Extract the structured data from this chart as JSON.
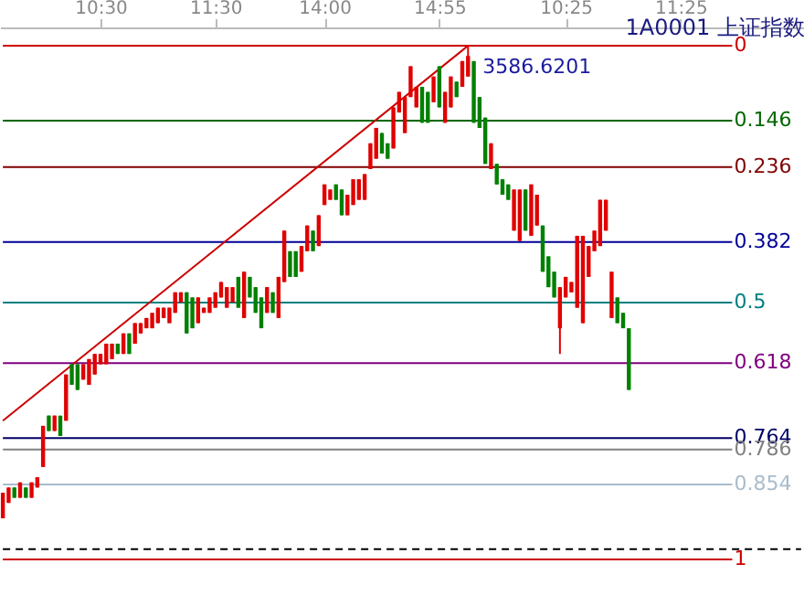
{
  "chart_data": {
    "type": "candlestick",
    "categories": [
      null,
      null,
      null,
      null,
      null,
      null,
      null,
      null,
      null,
      null,
      null,
      null,
      null,
      null,
      null,
      null,
      null,
      "10:30",
      null,
      null,
      null,
      null,
      null,
      null,
      null,
      null,
      null,
      null,
      null,
      null,
      null,
      null,
      null,
      null,
      null,
      null,
      null,
      "11:30",
      null,
      null,
      null,
      null,
      null,
      null,
      null,
      null,
      null,
      null,
      null,
      null,
      null,
      null,
      null,
      null,
      null,
      null,
      "14:00",
      null,
      null,
      null,
      null,
      null,
      null,
      null,
      null,
      null,
      null,
      null,
      null,
      null,
      null,
      null,
      null,
      null,
      null,
      null,
      "14:55",
      null,
      null,
      null,
      null,
      null,
      null,
      null,
      null,
      null,
      null,
      null,
      null,
      null,
      null,
      null,
      null,
      null,
      null,
      null,
      null,
      null,
      "10:25",
      null,
      null,
      null,
      null,
      null,
      null,
      null,
      null,
      null,
      null,
      null,
      null,
      null,
      null,
      null,
      null,
      null,
      null,
      null,
      "11:25",
      null,
      null,
      null,
      null,
      null,
      null,
      null,
      null,
      null,
      null,
      null,
      null,
      null,
      null,
      null,
      null,
      null,
      null,
      null,
      null,
      null
    ],
    "ohlc": [
      [
        0.92,
        0.92,
        0.87,
        0.87
      ],
      [
        0.89,
        0.89,
        0.86,
        0.86
      ],
      [
        0.86,
        0.88,
        0.86,
        0.88
      ],
      [
        0.88,
        0.88,
        0.85,
        0.85
      ],
      [
        0.86,
        0.88,
        0.86,
        0.88
      ],
      [
        0.88,
        0.88,
        0.85,
        0.85
      ],
      [
        0.86,
        0.86,
        0.84,
        0.84
      ],
      [
        0.82,
        0.82,
        0.74,
        0.74
      ],
      [
        0.72,
        0.75,
        0.72,
        0.75
      ],
      [
        0.75,
        0.75,
        0.72,
        0.72
      ],
      [
        0.72,
        0.76,
        0.72,
        0.76
      ],
      [
        0.73,
        0.73,
        0.64,
        0.64
      ],
      [
        0.62,
        0.66,
        0.62,
        0.66
      ],
      [
        0.62,
        0.67,
        0.62,
        0.67
      ],
      [
        0.65,
        0.65,
        0.62,
        0.62
      ],
      [
        0.66,
        0.66,
        0.61,
        0.61
      ],
      [
        0.64,
        0.64,
        0.6,
        0.6
      ],
      [
        0.62,
        0.62,
        0.6,
        0.6
      ],
      [
        0.62,
        0.62,
        0.58,
        0.58
      ],
      [
        0.61,
        0.61,
        0.58,
        0.58
      ],
      [
        0.58,
        0.6,
        0.58,
        0.6
      ],
      [
        0.6,
        0.6,
        0.56,
        0.56
      ],
      [
        0.56,
        0.6,
        0.56,
        0.6
      ],
      [
        0.58,
        0.58,
        0.54,
        0.54
      ],
      [
        0.56,
        0.56,
        0.54,
        0.54
      ],
      [
        0.55,
        0.55,
        0.53,
        0.53
      ],
      [
        0.55,
        0.55,
        0.52,
        0.52
      ],
      [
        0.54,
        0.54,
        0.51,
        0.51
      ],
      [
        0.53,
        0.53,
        0.51,
        0.51
      ],
      [
        0.54,
        0.54,
        0.51,
        0.51
      ],
      [
        0.52,
        0.52,
        0.48,
        0.48
      ],
      [
        0.5,
        0.5,
        0.48,
        0.48
      ],
      [
        0.48,
        0.56,
        0.48,
        0.56
      ],
      [
        0.49,
        0.55,
        0.49,
        0.55
      ],
      [
        0.54,
        0.54,
        0.49,
        0.49
      ],
      [
        0.52,
        0.52,
        0.51,
        0.51
      ],
      [
        0.52,
        0.52,
        0.49,
        0.49
      ],
      [
        0.51,
        0.51,
        0.48,
        0.48
      ],
      [
        0.49,
        0.49,
        0.46,
        0.46
      ],
      [
        0.51,
        0.51,
        0.47,
        0.47
      ],
      [
        0.5,
        0.5,
        0.47,
        0.47
      ],
      [
        0.45,
        0.51,
        0.45,
        0.51
      ],
      [
        0.53,
        0.53,
        0.44,
        0.44
      ],
      [
        0.45,
        0.49,
        0.45,
        0.49
      ],
      [
        0.47,
        0.52,
        0.47,
        0.52
      ],
      [
        0.49,
        0.55,
        0.49,
        0.55
      ],
      [
        0.52,
        0.52,
        0.47,
        0.47
      ],
      [
        0.48,
        0.52,
        0.48,
        0.52
      ],
      [
        0.53,
        0.53,
        0.45,
        0.45
      ],
      [
        0.46,
        0.46,
        0.36,
        0.36
      ],
      [
        0.4,
        0.45,
        0.4,
        0.45
      ],
      [
        0.4,
        0.45,
        0.4,
        0.45
      ],
      [
        0.44,
        0.44,
        0.39,
        0.39
      ],
      [
        0.4,
        0.4,
        0.35,
        0.35
      ],
      [
        0.36,
        0.4,
        0.36,
        0.4
      ],
      [
        0.39,
        0.39,
        0.33,
        0.33
      ],
      [
        0.31,
        0.31,
        0.27,
        0.27
      ],
      [
        0.3,
        0.3,
        0.28,
        0.28
      ],
      [
        0.27,
        0.3,
        0.27,
        0.3
      ],
      [
        0.28,
        0.33,
        0.28,
        0.33
      ],
      [
        0.33,
        0.33,
        0.29,
        0.29
      ],
      [
        0.31,
        0.31,
        0.26,
        0.26
      ],
      [
        0.3,
        0.3,
        0.26,
        0.26
      ],
      [
        0.3,
        0.3,
        0.25,
        0.25
      ],
      [
        0.24,
        0.24,
        0.19,
        0.19
      ],
      [
        0.22,
        0.22,
        0.16,
        0.16
      ],
      [
        0.17,
        0.21,
        0.17,
        0.21
      ],
      [
        0.19,
        0.22,
        0.19,
        0.22
      ],
      [
        0.2,
        0.2,
        0.12,
        0.12
      ],
      [
        0.13,
        0.13,
        0.09,
        0.09
      ],
      [
        0.17,
        0.17,
        0.1,
        0.1
      ],
      [
        0.1,
        0.1,
        0.04,
        0.04
      ],
      [
        0.12,
        0.12,
        0.08,
        0.08
      ],
      [
        0.08,
        0.15,
        0.08,
        0.15
      ],
      [
        0.09,
        0.15,
        0.09,
        0.15
      ],
      [
        0.11,
        0.11,
        0.06,
        0.06
      ],
      [
        0.04,
        0.12,
        0.04,
        0.12
      ],
      [
        0.15,
        0.15,
        0.09,
        0.09
      ],
      [
        0.12,
        0.12,
        0.06,
        0.06
      ],
      [
        0.07,
        0.1,
        0.07,
        0.1
      ],
      [
        0.08,
        0.08,
        0.03,
        0.03
      ],
      [
        0.06,
        0.06,
        0.0,
        0.02
      ],
      [
        0.03,
        0.15,
        0.03,
        0.15
      ],
      [
        0.1,
        0.16,
        0.1,
        0.16
      ],
      [
        0.14,
        0.23,
        0.14,
        0.23
      ],
      [
        0.24,
        0.24,
        0.19,
        0.19
      ],
      [
        0.23,
        0.27,
        0.23,
        0.27
      ],
      [
        0.26,
        0.29,
        0.26,
        0.29
      ],
      [
        0.27,
        0.3,
        0.27,
        0.3
      ],
      [
        0.36,
        0.36,
        0.28,
        0.28
      ],
      [
        0.38,
        0.38,
        0.28,
        0.28
      ],
      [
        0.28,
        0.36,
        0.28,
        0.36
      ],
      [
        0.37,
        0.37,
        0.27,
        0.27
      ],
      [
        0.35,
        0.35,
        0.29,
        0.29
      ],
      [
        0.35,
        0.44,
        0.35,
        0.44
      ],
      [
        0.41,
        0.47,
        0.41,
        0.47
      ],
      [
        0.44,
        0.49,
        0.44,
        0.49
      ],
      [
        0.55,
        0.6,
        0.47,
        0.47
      ],
      [
        0.49,
        0.49,
        0.45,
        0.45
      ],
      [
        0.48,
        0.48,
        0.46,
        0.46
      ],
      [
        0.51,
        0.51,
        0.37,
        0.37
      ],
      [
        0.54,
        0.54,
        0.37,
        0.37
      ],
      [
        0.45,
        0.45,
        0.39,
        0.39
      ],
      [
        0.4,
        0.4,
        0.36,
        0.36
      ],
      [
        0.39,
        0.39,
        0.3,
        0.3
      ],
      [
        0.36,
        0.36,
        0.3,
        0.3
      ],
      [
        0.53,
        0.53,
        0.44,
        0.44
      ],
      [
        0.49,
        0.54,
        0.49,
        0.54
      ],
      [
        0.52,
        0.55,
        0.52,
        0.55
      ],
      [
        0.55,
        0.67,
        0.55,
        0.67
      ],
      null,
      null,
      null,
      null,
      null,
      null,
      null,
      null,
      null,
      null,
      null,
      null,
      null,
      null,
      null,
      null,
      null,
      null,
      null,
      null,
      null,
      null,
      null,
      null,
      null,
      null,
      null,
      null,
      null,
      null
    ],
    "series": [
      {
        "type": "line",
        "color": "#cc0000",
        "values": [
          0.73,
          null,
          null,
          null,
          null,
          null,
          null,
          null,
          null,
          null,
          null,
          null,
          null,
          null,
          null,
          null,
          null,
          null,
          null,
          null,
          null,
          null,
          null,
          null,
          null,
          null,
          null,
          null,
          null,
          null,
          null,
          null,
          null,
          null,
          null,
          null,
          null,
          null,
          null,
          null,
          null,
          null,
          null,
          null,
          null,
          null,
          null,
          null,
          null,
          null,
          null,
          null,
          null,
          null,
          null,
          null,
          null,
          null,
          null,
          null,
          null,
          null,
          null,
          null,
          null,
          null,
          null,
          null,
          null,
          null,
          null,
          null,
          null,
          null,
          null,
          null,
          null,
          null,
          null,
          null,
          null,
          0.0,
          null,
          null,
          null,
          null,
          null,
          null,
          null,
          null,
          null,
          null,
          null,
          null,
          null,
          null,
          null,
          null,
          null,
          null,
          null,
          null,
          null,
          null,
          null,
          null,
          null,
          null,
          null,
          null,
          null,
          null,
          null,
          null,
          null,
          null,
          null,
          null,
          null,
          null,
          null,
          null,
          null,
          null,
          null,
          null,
          null,
          null,
          null,
          null,
          null,
          null,
          null,
          null,
          null,
          null,
          null,
          null,
          null,
          null
        ]
      }
    ],
    "ylim": [
      1,
      0
    ],
    "tick_labels": "x",
    "grid": false,
    "ref_lines": [
      {
        "axis": "y",
        "value": 0,
        "label": "0",
        "color": "#cc0000"
      },
      {
        "axis": "y",
        "value": 0.146,
        "label": "0.146",
        "color": "#006600"
      },
      {
        "axis": "y",
        "value": 0.236,
        "label": "0.236",
        "color": "#800000"
      },
      {
        "axis": "y",
        "value": 0.382,
        "label": "0.382",
        "color": "#000099"
      },
      {
        "axis": "y",
        "value": 0.5,
        "label": "0.5",
        "color": "#008080"
      },
      {
        "axis": "y",
        "value": 0.618,
        "label": "0.618",
        "color": "#800080"
      },
      {
        "axis": "y",
        "value": 0.764,
        "label": "0.764",
        "color": "#000066"
      },
      {
        "axis": "y",
        "value": 0.786,
        "label": "0.786",
        "color": "#808080"
      },
      {
        "axis": "y",
        "value": 0.854,
        "label": "0.854",
        "color": "#a8bccc"
      },
      {
        "axis": "y",
        "value": 1,
        "label": "1",
        "color": "#cc0000"
      },
      {
        "axis": "y",
        "value": 0.98,
        "color": "#000000",
        "line_style": "dashed"
      }
    ],
    "annotations": [
      {
        "text": "3586.6201",
        "y": 0
      },
      "1A0001  上证指数"
    ]
  }
}
